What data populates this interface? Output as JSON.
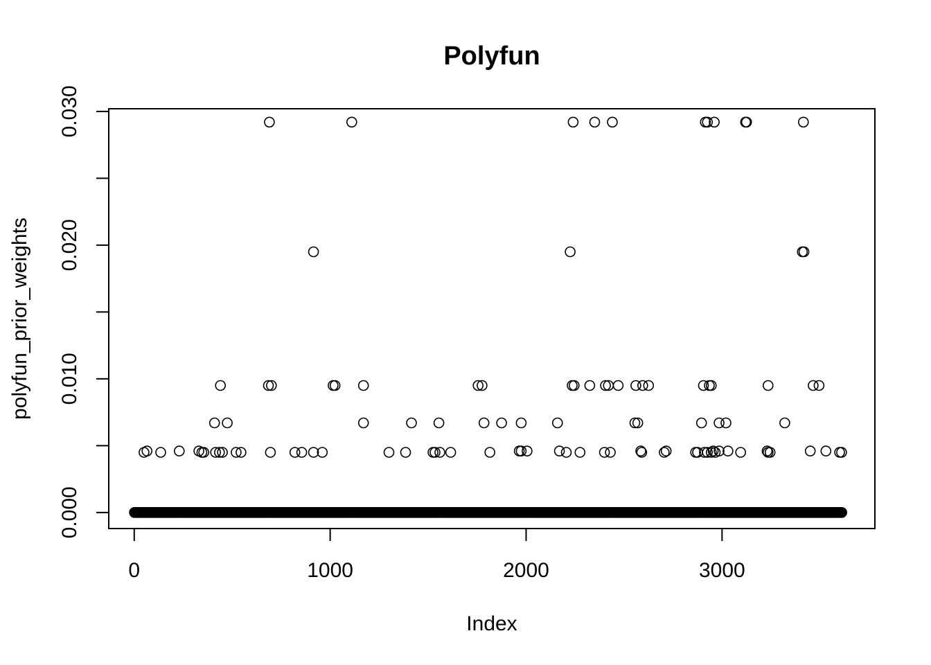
{
  "chart_data": {
    "type": "scatter",
    "title": "Polyfun",
    "xlabel": "Index",
    "ylabel": "polyfun_prior_weights",
    "xlim": [
      -130,
      3780
    ],
    "ylim": [
      -0.0012,
      0.0302
    ],
    "xticks": [
      0,
      1000,
      2000,
      3000
    ],
    "xtick_labels": [
      "0",
      "1000",
      "2000",
      "3000"
    ],
    "yticks": [
      0,
      0.005,
      0.01,
      0.015,
      0.02,
      0.025,
      0.03
    ],
    "ytick_labels": [
      "0.000",
      "",
      "0.010",
      "",
      "0.020",
      "",
      "0.030"
    ],
    "grid": false,
    "marker": "open-circle",
    "baseline": {
      "y": 0,
      "x_from": 1,
      "x_to": 3615,
      "step": 5
    },
    "series": [
      {
        "points": [
          [
            690,
            0.0292
          ],
          [
            1110,
            0.0292
          ],
          [
            2240,
            0.0292
          ],
          [
            2350,
            0.0292
          ],
          [
            2440,
            0.0292
          ],
          [
            2915,
            0.0292
          ],
          [
            2925,
            0.0292
          ],
          [
            2960,
            0.0292
          ],
          [
            3120,
            0.0292
          ],
          [
            3125,
            0.0292
          ],
          [
            3415,
            0.0292
          ],
          [
            915,
            0.0195
          ],
          [
            2225,
            0.0195
          ],
          [
            3410,
            0.0195
          ],
          [
            3418,
            0.0195
          ],
          [
            440,
            0.0095
          ],
          [
            685,
            0.0095
          ],
          [
            700,
            0.0095
          ],
          [
            1015,
            0.0095
          ],
          [
            1025,
            0.0095
          ],
          [
            1170,
            0.0095
          ],
          [
            1755,
            0.0095
          ],
          [
            1775,
            0.0095
          ],
          [
            2235,
            0.0095
          ],
          [
            2245,
            0.0095
          ],
          [
            2325,
            0.0095
          ],
          [
            2405,
            0.0095
          ],
          [
            2420,
            0.0095
          ],
          [
            2470,
            0.0095
          ],
          [
            2560,
            0.0095
          ],
          [
            2595,
            0.0095
          ],
          [
            2625,
            0.0095
          ],
          [
            2905,
            0.0095
          ],
          [
            2935,
            0.0095
          ],
          [
            2945,
            0.0095
          ],
          [
            3235,
            0.0095
          ],
          [
            3465,
            0.0095
          ],
          [
            3495,
            0.0095
          ],
          [
            410,
            0.0067
          ],
          [
            475,
            0.0067
          ],
          [
            1170,
            0.0067
          ],
          [
            1415,
            0.0067
          ],
          [
            1555,
            0.0067
          ],
          [
            1785,
            0.0067
          ],
          [
            1875,
            0.0067
          ],
          [
            1975,
            0.0067
          ],
          [
            2160,
            0.0067
          ],
          [
            2555,
            0.0067
          ],
          [
            2570,
            0.0067
          ],
          [
            2895,
            0.0067
          ],
          [
            2985,
            0.0067
          ],
          [
            3020,
            0.0067
          ],
          [
            3320,
            0.0067
          ],
          [
            50,
            0.0045
          ],
          [
            65,
            0.0046
          ],
          [
            135,
            0.0045
          ],
          [
            230,
            0.0046
          ],
          [
            330,
            0.0046
          ],
          [
            345,
            0.0045
          ],
          [
            355,
            0.0045
          ],
          [
            415,
            0.0045
          ],
          [
            435,
            0.0045
          ],
          [
            450,
            0.0045
          ],
          [
            520,
            0.0045
          ],
          [
            545,
            0.0045
          ],
          [
            695,
            0.0045
          ],
          [
            820,
            0.0045
          ],
          [
            855,
            0.0045
          ],
          [
            915,
            0.0045
          ],
          [
            960,
            0.0045
          ],
          [
            1300,
            0.0045
          ],
          [
            1385,
            0.0045
          ],
          [
            1525,
            0.0045
          ],
          [
            1535,
            0.0045
          ],
          [
            1560,
            0.0045
          ],
          [
            1615,
            0.0045
          ],
          [
            1815,
            0.0045
          ],
          [
            1965,
            0.0046
          ],
          [
            1975,
            0.0046
          ],
          [
            2005,
            0.0046
          ],
          [
            2170,
            0.0046
          ],
          [
            2205,
            0.0045
          ],
          [
            2275,
            0.0045
          ],
          [
            2400,
            0.0045
          ],
          [
            2430,
            0.0045
          ],
          [
            2585,
            0.0046
          ],
          [
            2590,
            0.0045
          ],
          [
            2705,
            0.0045
          ],
          [
            2715,
            0.0046
          ],
          [
            2865,
            0.0045
          ],
          [
            2875,
            0.0045
          ],
          [
            2910,
            0.0045
          ],
          [
            2925,
            0.0045
          ],
          [
            2945,
            0.0045
          ],
          [
            2955,
            0.0046
          ],
          [
            2965,
            0.0045
          ],
          [
            2985,
            0.0046
          ],
          [
            3030,
            0.0046
          ],
          [
            3095,
            0.0045
          ],
          [
            3230,
            0.0046
          ],
          [
            3235,
            0.0045
          ],
          [
            3245,
            0.0045
          ],
          [
            3450,
            0.0046
          ],
          [
            3530,
            0.0046
          ],
          [
            3600,
            0.0045
          ],
          [
            3610,
            0.0045
          ]
        ]
      }
    ]
  }
}
